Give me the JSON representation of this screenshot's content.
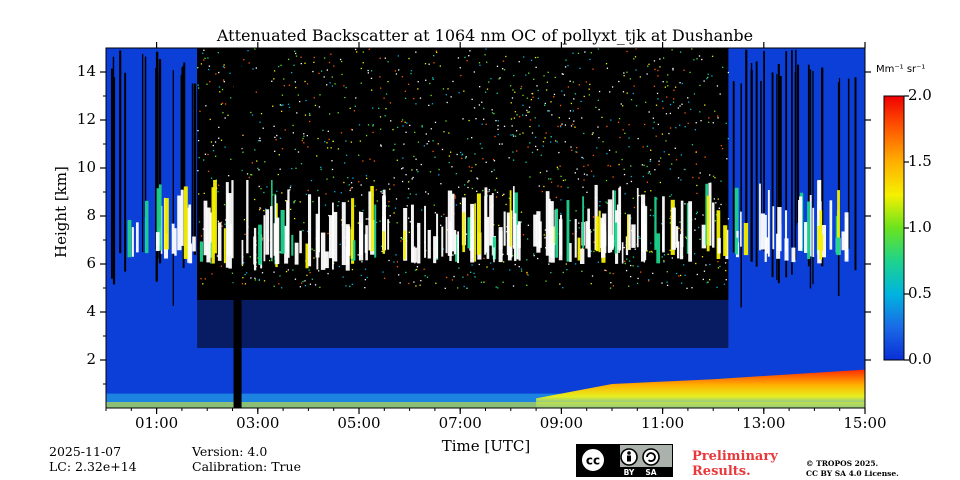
{
  "chart_data": {
    "type": "heatmap",
    "title": "Attenuated Backscatter at 1064 nm OC of pollyxt_tjk at Dushanbe",
    "xlabel": "Time [UTC]",
    "ylabel": "Height [km]",
    "x_ticks": [
      "01:00",
      "03:00",
      "05:00",
      "07:00",
      "09:00",
      "11:00",
      "13:00",
      "15:00"
    ],
    "x_tick_hours": [
      1,
      3,
      5,
      7,
      9,
      11,
      13,
      15
    ],
    "xlim_hours": [
      0,
      15
    ],
    "y_ticks": [
      "2",
      "4",
      "6",
      "8",
      "10",
      "12",
      "14"
    ],
    "y_tick_values": [
      2,
      4,
      6,
      8,
      10,
      12,
      14
    ],
    "ylim_km": [
      0,
      15
    ],
    "colorbar": {
      "unit_label": "Mm⁻¹ sr⁻¹",
      "ticks": [
        "0.0",
        "0.5",
        "1.0",
        "1.5",
        "2.0"
      ],
      "tick_values": [
        0.0,
        0.5,
        1.0,
        1.5,
        2.0
      ],
      "range": [
        0.0,
        2.0
      ],
      "colors": [
        "#0a2fd6",
        "#1a6ae6",
        "#00b4e0",
        "#1ed38c",
        "#6be31f",
        "#f5f000",
        "#ffb000",
        "#ff5a00",
        "#f00000"
      ]
    },
    "features": {
      "cloud_layer_km": [
        6,
        9.5
      ],
      "boundary_layer_km": [
        0,
        1.5
      ],
      "data_gap_hour": 2.6
    }
  },
  "footer": {
    "date": "2025-11-07",
    "lc": "LC: 2.32e+14",
    "version": "Version: 4.0",
    "calibration": "Calibration: True",
    "preliminary_line1": "Preliminary",
    "preliminary_line2": "Results.",
    "copyright_line1": "© TROPOS 2025.",
    "copyright_line2": "CC BY SA 4.0 License.",
    "cc_text": "cc",
    "by_text": "BY",
    "sa_text": "SA"
  },
  "colors": {
    "low": "#0b3fd8",
    "noise_bg": "#000000",
    "cloud": "#ffffff",
    "bl_yellow": "#e6f020",
    "bl_red": "#ff2a00",
    "prelim": "#e8383c"
  }
}
